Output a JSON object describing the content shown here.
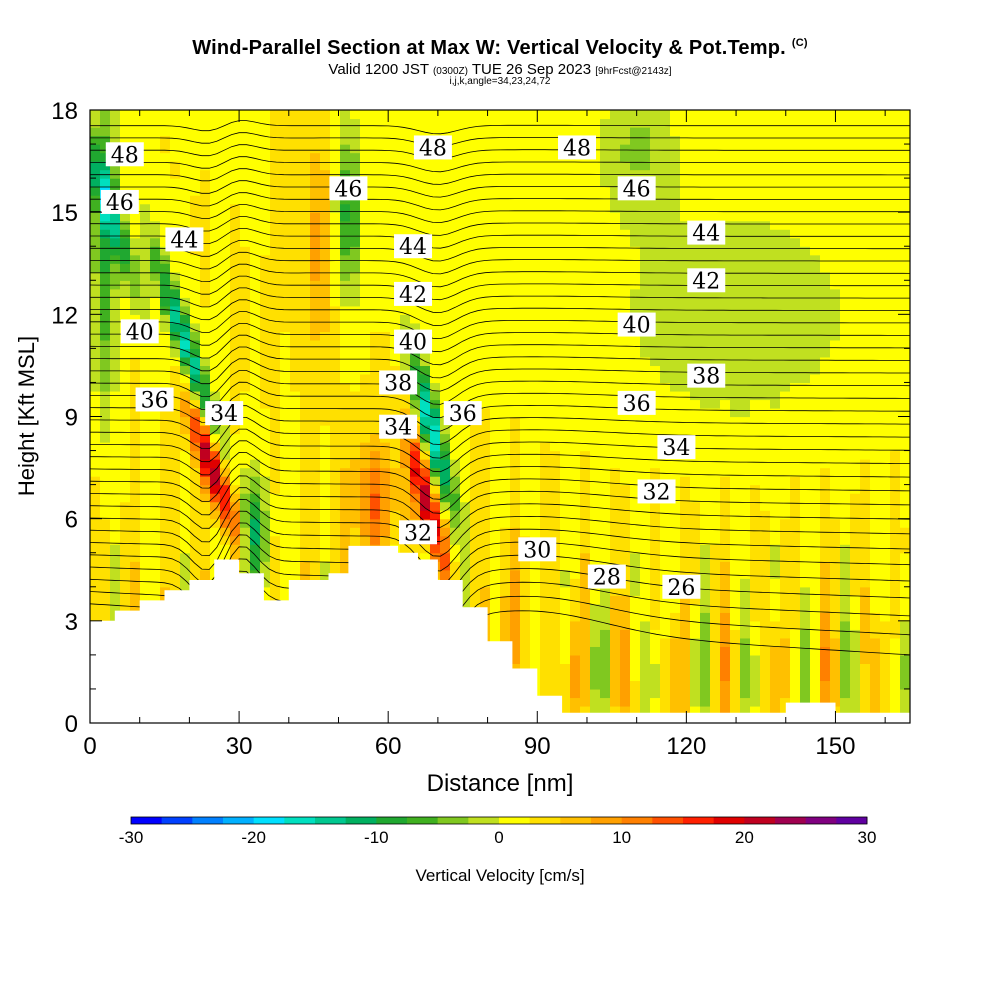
{
  "header": {
    "title": "Wind-Parallel Section at Max W: Vertical Velocity & Pot.Temp.",
    "title_mark": "(C)",
    "valid_prefix": "Valid 1200 JST",
    "valid_z": "(0300Z)",
    "valid_date": "TUE 26 Sep 2023",
    "valid_fcst": "[9hrFcst@2143z]",
    "indices": "i,j,k,angle=34,23,24,72"
  },
  "chart_data": {
    "type": "heatmap",
    "title": "Wind-Parallel Section at Max W: Vertical Velocity & Pot.Temp.",
    "xlabel": "Distance [nm]",
    "ylabel": "Height [Kft MSL]",
    "xlim": [
      0,
      165
    ],
    "ylim": [
      0,
      18
    ],
    "x_ticks": [
      0,
      30,
      60,
      90,
      120,
      150
    ],
    "y_ticks": [
      0,
      3,
      6,
      9,
      12,
      15,
      18
    ],
    "colorbar": {
      "label": "Vertical Velocity [cm/s]",
      "min": -30,
      "max": 30,
      "ticks": [
        -30,
        -20,
        -10,
        0,
        10,
        20,
        30
      ],
      "colors": [
        "#0000ff",
        "#0040ff",
        "#0080ff",
        "#00b0ff",
        "#00e0ff",
        "#00e0c0",
        "#00c890",
        "#00b060",
        "#20a830",
        "#40b020",
        "#80c820",
        "#c0e020",
        "#ffff00",
        "#ffe000",
        "#ffc000",
        "#ffa000",
        "#ff8000",
        "#ff5000",
        "#ff2000",
        "#e00000",
        "#c00020",
        "#a00050",
        "#800080",
        "#6000a0"
      ]
    },
    "terrain": [
      [
        0,
        3.0
      ],
      [
        5,
        3.3
      ],
      [
        10,
        3.6
      ],
      [
        15,
        3.9
      ],
      [
        20,
        4.2
      ],
      [
        25,
        4.8
      ],
      [
        30,
        4.4
      ],
      [
        35,
        3.6
      ],
      [
        40,
        4.2
      ],
      [
        48,
        4.4
      ],
      [
        52,
        5.2
      ],
      [
        58,
        5.2
      ],
      [
        62,
        5.0
      ],
      [
        66,
        4.8
      ],
      [
        70,
        4.2
      ],
      [
        75,
        3.4
      ],
      [
        80,
        2.4
      ],
      [
        85,
        1.6
      ],
      [
        90,
        0.8
      ],
      [
        95,
        0.3
      ],
      [
        120,
        0.3
      ],
      [
        140,
        0.6
      ],
      [
        150,
        0.3
      ],
      [
        165,
        0.3
      ]
    ],
    "theta_labels": [
      {
        "text": "48",
        "x": 7,
        "y": 16.7
      },
      {
        "text": "46",
        "x": 6,
        "y": 15.3
      },
      {
        "text": "44",
        "x": 19,
        "y": 14.2
      },
      {
        "text": "40",
        "x": 10,
        "y": 11.5
      },
      {
        "text": "36",
        "x": 13,
        "y": 9.5
      },
      {
        "text": "34",
        "x": 27,
        "y": 9.1
      },
      {
        "text": "46",
        "x": 52,
        "y": 15.7
      },
      {
        "text": "48",
        "x": 69,
        "y": 16.9
      },
      {
        "text": "44",
        "x": 65,
        "y": 14.0
      },
      {
        "text": "42",
        "x": 65,
        "y": 12.6
      },
      {
        "text": "40",
        "x": 65,
        "y": 11.2
      },
      {
        "text": "38",
        "x": 62,
        "y": 10.0
      },
      {
        "text": "34",
        "x": 62,
        "y": 8.7
      },
      {
        "text": "36",
        "x": 75,
        "y": 9.1
      },
      {
        "text": "32",
        "x": 66,
        "y": 5.6
      },
      {
        "text": "48",
        "x": 98,
        "y": 16.9
      },
      {
        "text": "46",
        "x": 110,
        "y": 15.7
      },
      {
        "text": "44",
        "x": 124,
        "y": 14.4
      },
      {
        "text": "42",
        "x": 124,
        "y": 13.0
      },
      {
        "text": "40",
        "x": 110,
        "y": 11.7
      },
      {
        "text": "38",
        "x": 124,
        "y": 10.2
      },
      {
        "text": "36",
        "x": 110,
        "y": 9.4
      },
      {
        "text": "34",
        "x": 118,
        "y": 8.1
      },
      {
        "text": "32",
        "x": 114,
        "y": 6.8
      },
      {
        "text": "30",
        "x": 90,
        "y": 5.1
      },
      {
        "text": "28",
        "x": 104,
        "y": 4.3
      },
      {
        "text": "26",
        "x": 119,
        "y": 4.0
      }
    ]
  }
}
